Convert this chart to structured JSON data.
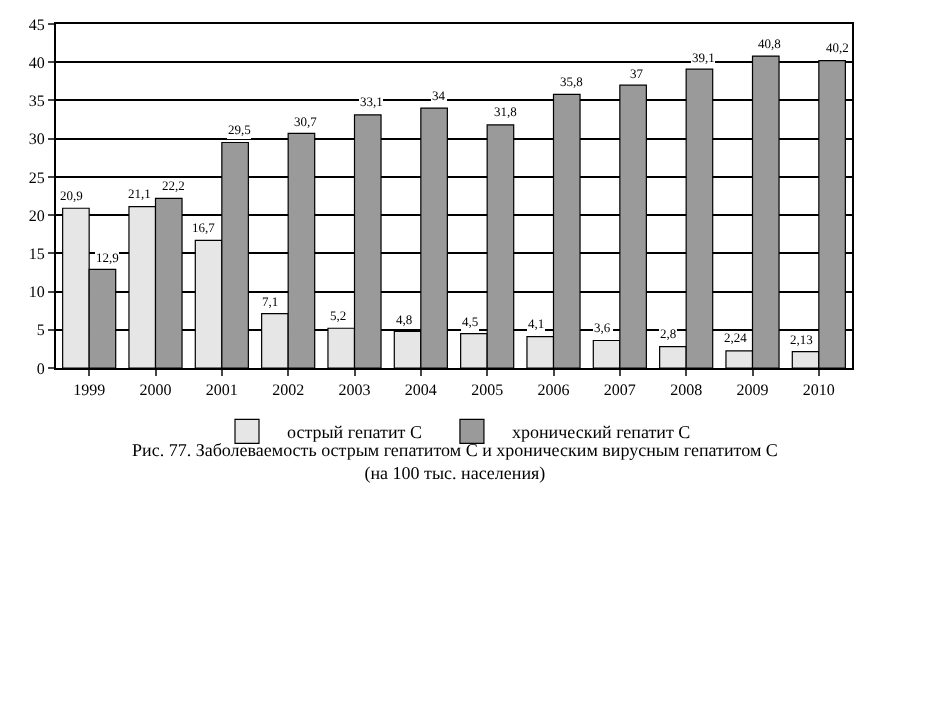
{
  "chart_data": {
    "type": "bar",
    "categories": [
      "1999",
      "2000",
      "2001",
      "2002",
      "2003",
      "2004",
      "2005",
      "2006",
      "2007",
      "2008",
      "2009",
      "2010"
    ],
    "series": [
      {
        "name": "острый гепатит С",
        "color": "#e6e6e6",
        "values": [
          20.9,
          21.1,
          16.7,
          7.1,
          5.2,
          4.8,
          4.5,
          4.1,
          3.6,
          2.8,
          2.24,
          2.13
        ],
        "value_labels": [
          "20,9",
          "21,1",
          "16,7",
          "7,1",
          "5,2",
          "4,8",
          "4,5",
          "4,1",
          "3,6",
          "2,8",
          "2,24",
          "2,13"
        ]
      },
      {
        "name": "хронический гепатит С",
        "color": "#9a9a9a",
        "values": [
          12.9,
          22.2,
          29.5,
          30.7,
          33.1,
          34,
          31.8,
          35.8,
          37,
          39.1,
          40.8,
          40.2
        ],
        "value_labels": [
          "12,9",
          "22,2",
          "29,5",
          "30,7",
          "33,1",
          "34",
          "31,8",
          "35,8",
          "37",
          "39,1",
          "40,8",
          "40,2"
        ]
      }
    ],
    "ylim": [
      0,
      45
    ],
    "yticks": [
      0,
      5,
      10,
      15,
      20,
      25,
      30,
      35,
      40,
      45
    ],
    "grid": "y",
    "legend": "bottom",
    "annotations": [
      "Рис. 77. Заболеваемость острым гепатитом С и хроническим вирусным гепатитом С\n(на 100 тыс. населения)"
    ]
  }
}
